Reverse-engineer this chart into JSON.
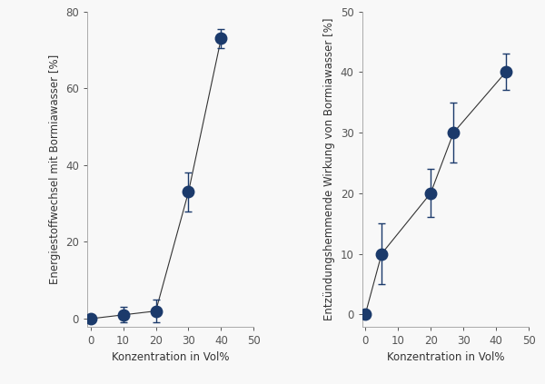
{
  "left": {
    "x": [
      0,
      10,
      20,
      30,
      40
    ],
    "y": [
      0,
      1,
      2,
      33,
      73
    ],
    "yerr": [
      0.5,
      2,
      3,
      5,
      2.5
    ],
    "xlabel": "Konzentration in Vol%",
    "ylabel": "Energiestoffwechsel mit Bormiawasser [%]",
    "xlim": [
      -1,
      50
    ],
    "ylim": [
      -2,
      80
    ],
    "xticks": [
      0,
      10,
      20,
      30,
      40,
      50
    ],
    "yticks": [
      0,
      20,
      40,
      60,
      80
    ]
  },
  "right": {
    "x": [
      0,
      5,
      20,
      27,
      43
    ],
    "y": [
      0,
      10,
      20,
      30,
      40
    ],
    "yerr": [
      0.3,
      5,
      4,
      5,
      3
    ],
    "xlabel": "Konzentration in Vol%",
    "ylabel": "Entzündungshemmende Wirkung von Bormiawasser [%]",
    "xlim": [
      -1,
      50
    ],
    "ylim": [
      -2,
      50
    ],
    "xticks": [
      0,
      10,
      20,
      30,
      40,
      50
    ],
    "yticks": [
      0,
      10,
      20,
      30,
      40,
      50
    ]
  },
  "marker_color": "#1b3a6b",
  "marker_size": 9,
  "line_color": "#333333",
  "background_color": "#f8f8f8",
  "font_size": 8.5,
  "spine_color": "#aaaaaa"
}
